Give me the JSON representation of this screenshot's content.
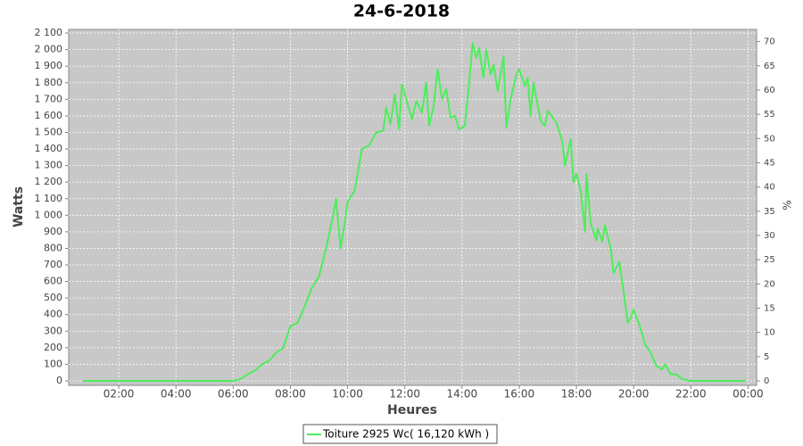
{
  "chart_data": {
    "type": "line",
    "title": "24-6-2018",
    "x_label": "Heures",
    "y_label": "Watts",
    "y2_label": "%",
    "x": [
      0.75,
      2,
      4,
      5.5,
      6.0,
      6.25,
      6.5,
      6.75,
      7.0,
      7.25,
      7.5,
      7.75,
      8.0,
      8.25,
      8.5,
      8.75,
      9.0,
      9.25,
      9.5,
      9.6,
      9.75,
      9.9,
      10.0,
      10.25,
      10.5,
      10.75,
      11.0,
      11.25,
      11.35,
      11.5,
      11.65,
      11.8,
      11.9,
      12.05,
      12.25,
      12.4,
      12.6,
      12.75,
      12.85,
      13.0,
      13.15,
      13.3,
      13.45,
      13.6,
      13.75,
      13.9,
      14.1,
      14.25,
      14.37,
      14.5,
      14.6,
      14.75,
      14.85,
      15.0,
      15.1,
      15.25,
      15.45,
      15.55,
      15.7,
      15.9,
      16.0,
      16.2,
      16.3,
      16.4,
      16.5,
      16.75,
      16.9,
      17.0,
      17.3,
      17.5,
      17.6,
      17.8,
      17.9,
      18.0,
      18.15,
      18.3,
      18.35,
      18.5,
      18.7,
      18.75,
      18.9,
      19.0,
      19.2,
      19.3,
      19.5,
      19.6,
      19.8,
      19.9,
      20.0,
      20.2,
      20.4,
      20.6,
      20.8,
      21.0,
      21.1,
      21.3,
      21.5,
      21.7,
      22.0,
      23.9
    ],
    "series": [
      {
        "name": "Toiture 2925 Wc( 16,120 kWh )",
        "color": "#4cee5a",
        "values": [
          0,
          0,
          0,
          0,
          0,
          10,
          40,
          60,
          100,
          120,
          170,
          200,
          330,
          350,
          450,
          560,
          630,
          800,
          1000,
          1100,
          800,
          950,
          1080,
          1150,
          1400,
          1420,
          1500,
          1510,
          1650,
          1550,
          1730,
          1520,
          1790,
          1700,
          1580,
          1690,
          1620,
          1800,
          1540,
          1650,
          1880,
          1700,
          1760,
          1590,
          1600,
          1520,
          1540,
          1800,
          2040,
          1950,
          2010,
          1830,
          2000,
          1850,
          1910,
          1750,
          1960,
          1530,
          1700,
          1850,
          1880,
          1780,
          1830,
          1600,
          1800,
          1570,
          1540,
          1630,
          1560,
          1450,
          1300,
          1460,
          1200,
          1250,
          1150,
          900,
          1250,
          950,
          850,
          920,
          840,
          940,
          800,
          650,
          720,
          600,
          350,
          380,
          430,
          340,
          220,
          170,
          90,
          70,
          100,
          40,
          40,
          10,
          0,
          0
        ]
      }
    ],
    "xlim": [
      0.25,
      24.3
    ],
    "xticks": [
      {
        "value": 2,
        "label": "02:00"
      },
      {
        "value": 4,
        "label": "04:00"
      },
      {
        "value": 6,
        "label": "06:00"
      },
      {
        "value": 8,
        "label": "08:00"
      },
      {
        "value": 10,
        "label": "10:00"
      },
      {
        "value": 12,
        "label": "12:00"
      },
      {
        "value": 14,
        "label": "14:00"
      },
      {
        "value": 16,
        "label": "16:00"
      },
      {
        "value": 18,
        "label": "18:00"
      },
      {
        "value": 20,
        "label": "20:00"
      },
      {
        "value": 22,
        "label": "22:00"
      },
      {
        "value": 24,
        "label": "00:00"
      }
    ],
    "ylim": [
      -27,
      2122
    ],
    "yticks": [
      0,
      100,
      200,
      300,
      400,
      500,
      600,
      700,
      800,
      900,
      {
        "value": 1000,
        "label": "1 000"
      },
      {
        "value": 1100,
        "label": "1 100"
      },
      {
        "value": 1200,
        "label": "1 200"
      },
      {
        "value": 1300,
        "label": "1 300"
      },
      {
        "value": 1400,
        "label": "1 400"
      },
      {
        "value": 1500,
        "label": "1 500"
      },
      {
        "value": 1600,
        "label": "1 600"
      },
      {
        "value": 1700,
        "label": "1 700"
      },
      {
        "value": 1800,
        "label": "1 800"
      },
      {
        "value": 1900,
        "label": "1 900"
      },
      {
        "value": 2000,
        "label": "2 000"
      },
      {
        "value": 2100,
        "label": "2 100"
      }
    ],
    "y2lim": [
      -0.92,
      72.5
    ],
    "y2ticks": [
      0,
      5,
      10,
      15,
      20,
      25,
      30,
      35,
      40,
      45,
      50,
      55,
      60,
      65,
      70
    ],
    "grid": true
  }
}
